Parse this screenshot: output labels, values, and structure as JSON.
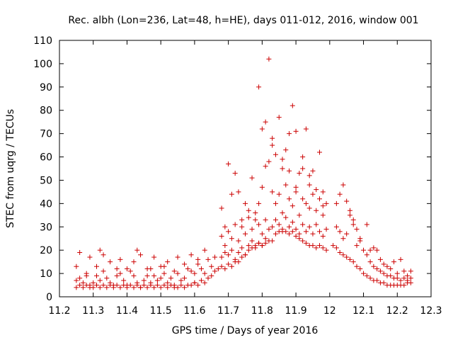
{
  "chart_data": {
    "type": "scatter",
    "title": "Rec. albh (Lon=236, Lat=48, h=HE), days 011-012, 2016, window 001",
    "xlabel": "GPS time / Days of year 2016",
    "ylabel": "STEC from uqrg / TECUs",
    "xlim": [
      11.2,
      12.3
    ],
    "ylim": [
      0,
      110
    ],
    "xticks": [
      11.2,
      11.3,
      11.4,
      11.5,
      11.6,
      11.7,
      11.8,
      11.9,
      12.0,
      12.1,
      12.2,
      12.3
    ],
    "xtick_labels": [
      "11.2",
      "11.3",
      "11.4",
      "11.5",
      "11.6",
      "11.7",
      "11.8",
      "11.9",
      "12",
      "12.1",
      "12.2",
      "12.3"
    ],
    "yticks": [
      0,
      10,
      20,
      30,
      40,
      50,
      60,
      70,
      80,
      90,
      100,
      110
    ],
    "ytick_labels": [
      "0",
      "10",
      "20",
      "30",
      "40",
      "50",
      "60",
      "70",
      "80",
      "90",
      "100",
      "110"
    ],
    "grid": false,
    "marker": "+",
    "color": "#cc0000",
    "series": [
      {
        "points": [
          [
            11.25,
            13
          ],
          [
            11.26,
            19
          ],
          [
            11.28,
            9
          ],
          [
            11.29,
            17
          ],
          [
            11.31,
            13
          ],
          [
            11.32,
            20
          ],
          [
            11.33,
            18
          ],
          [
            11.35,
            15
          ],
          [
            11.37,
            9
          ],
          [
            11.38,
            16
          ],
          [
            11.4,
            12
          ],
          [
            11.42,
            15
          ],
          [
            11.43,
            20
          ],
          [
            11.44,
            18
          ],
          [
            11.46,
            9
          ],
          [
            11.47,
            12
          ],
          [
            11.48,
            17
          ],
          [
            11.5,
            8
          ],
          [
            11.51,
            13
          ],
          [
            11.52,
            15
          ],
          [
            11.54,
            11
          ],
          [
            11.55,
            17
          ],
          [
            11.57,
            14
          ],
          [
            11.59,
            18
          ],
          [
            11.6,
            10
          ],
          [
            11.61,
            16
          ],
          [
            11.63,
            20
          ],
          [
            11.25,
            7
          ],
          [
            11.26,
            8
          ],
          [
            11.27,
            6
          ],
          [
            11.28,
            10
          ],
          [
            11.29,
            5
          ],
          [
            11.3,
            6
          ],
          [
            11.31,
            9
          ],
          [
            11.32,
            7
          ],
          [
            11.33,
            11
          ],
          [
            11.34,
            8
          ],
          [
            11.35,
            6
          ],
          [
            11.36,
            5
          ],
          [
            11.37,
            12
          ],
          [
            11.38,
            10
          ],
          [
            11.39,
            7
          ],
          [
            11.4,
            5
          ],
          [
            11.41,
            11
          ],
          [
            11.42,
            9
          ],
          [
            11.43,
            6
          ],
          [
            11.44,
            4
          ],
          [
            11.45,
            7
          ],
          [
            11.46,
            12
          ],
          [
            11.47,
            6
          ],
          [
            11.48,
            9
          ],
          [
            11.49,
            7
          ],
          [
            11.5,
            13
          ],
          [
            11.51,
            10
          ],
          [
            11.52,
            6
          ],
          [
            11.53,
            8
          ],
          [
            11.54,
            5
          ],
          [
            11.55,
            10
          ],
          [
            11.56,
            7
          ],
          [
            11.57,
            8
          ],
          [
            11.58,
            12
          ],
          [
            11.59,
            11
          ],
          [
            11.6,
            6
          ],
          [
            11.61,
            14
          ],
          [
            11.62,
            12
          ],
          [
            11.63,
            10
          ],
          [
            11.64,
            16
          ],
          [
            11.65,
            13
          ],
          [
            11.66,
            17
          ],
          [
            11.25,
            4
          ],
          [
            11.26,
            5
          ],
          [
            11.27,
            4
          ],
          [
            11.28,
            5
          ],
          [
            11.29,
            4
          ],
          [
            11.3,
            4
          ],
          [
            11.31,
            5
          ],
          [
            11.32,
            4
          ],
          [
            11.33,
            5
          ],
          [
            11.34,
            4
          ],
          [
            11.35,
            5
          ],
          [
            11.36,
            4
          ],
          [
            11.37,
            5
          ],
          [
            11.38,
            4
          ],
          [
            11.39,
            5
          ],
          [
            11.4,
            4
          ],
          [
            11.41,
            5
          ],
          [
            11.42,
            4
          ],
          [
            11.43,
            5
          ],
          [
            11.44,
            4
          ],
          [
            11.45,
            5
          ],
          [
            11.46,
            4
          ],
          [
            11.47,
            5
          ],
          [
            11.48,
            4
          ],
          [
            11.49,
            5
          ],
          [
            11.5,
            4
          ],
          [
            11.51,
            5
          ],
          [
            11.52,
            4
          ],
          [
            11.53,
            5
          ],
          [
            11.54,
            4
          ],
          [
            11.55,
            4
          ],
          [
            11.56,
            5
          ],
          [
            11.57,
            4
          ],
          [
            11.58,
            5
          ],
          [
            11.59,
            5
          ],
          [
            11.6,
            6
          ],
          [
            11.61,
            5
          ],
          [
            11.62,
            7
          ],
          [
            11.63,
            6
          ],
          [
            11.64,
            8
          ],
          [
            11.65,
            9
          ],
          [
            11.66,
            11
          ],
          [
            11.67,
            12
          ],
          [
            11.68,
            38
          ],
          [
            11.69,
            30
          ],
          [
            11.7,
            57
          ],
          [
            11.71,
            44
          ],
          [
            11.72,
            53
          ],
          [
            11.73,
            45
          ],
          [
            11.74,
            33
          ],
          [
            11.75,
            40
          ],
          [
            11.76,
            37
          ],
          [
            11.77,
            51
          ],
          [
            11.78,
            33
          ],
          [
            11.79,
            40
          ],
          [
            11.8,
            47
          ],
          [
            11.81,
            56
          ],
          [
            11.82,
            58
          ],
          [
            11.68,
            26
          ],
          [
            11.69,
            22
          ],
          [
            11.7,
            28
          ],
          [
            11.71,
            25
          ],
          [
            11.72,
            31
          ],
          [
            11.73,
            24
          ],
          [
            11.74,
            30
          ],
          [
            11.75,
            27
          ],
          [
            11.76,
            34
          ],
          [
            11.77,
            29
          ],
          [
            11.78,
            36
          ],
          [
            11.79,
            31
          ],
          [
            11.8,
            27
          ],
          [
            11.81,
            33
          ],
          [
            11.82,
            29
          ],
          [
            11.68,
            17
          ],
          [
            11.69,
            19
          ],
          [
            11.7,
            18
          ],
          [
            11.71,
            20
          ],
          [
            11.72,
            16
          ],
          [
            11.73,
            19
          ],
          [
            11.74,
            21
          ],
          [
            11.75,
            18
          ],
          [
            11.76,
            22
          ],
          [
            11.77,
            24
          ],
          [
            11.78,
            21
          ],
          [
            11.79,
            23
          ],
          [
            11.8,
            22
          ],
          [
            11.81,
            25
          ],
          [
            11.82,
            24
          ],
          [
            11.68,
            13
          ],
          [
            11.69,
            12
          ],
          [
            11.7,
            14
          ],
          [
            11.71,
            13
          ],
          [
            11.72,
            15
          ],
          [
            11.73,
            15
          ],
          [
            11.74,
            17
          ],
          [
            11.75,
            18
          ],
          [
            11.76,
            20
          ],
          [
            11.77,
            21
          ],
          [
            11.78,
            22
          ],
          [
            11.79,
            23
          ],
          [
            11.8,
            22
          ],
          [
            11.81,
            23
          ],
          [
            11.79,
            90
          ],
          [
            11.81,
            75
          ],
          [
            11.82,
            102
          ],
          [
            11.83,
            68
          ],
          [
            11.84,
            61
          ],
          [
            11.85,
            77
          ],
          [
            11.86,
            55
          ],
          [
            11.87,
            63
          ],
          [
            11.88,
            70
          ],
          [
            11.89,
            82
          ],
          [
            11.9,
            71
          ],
          [
            11.91,
            53
          ],
          [
            11.92,
            55
          ],
          [
            11.93,
            72
          ],
          [
            11.94,
            48
          ],
          [
            11.95,
            54
          ],
          [
            11.97,
            62
          ],
          [
            11.98,
            39
          ],
          [
            11.8,
            72
          ],
          [
            11.83,
            65
          ],
          [
            11.86,
            59
          ],
          [
            11.88,
            54
          ],
          [
            11.9,
            47
          ],
          [
            11.92,
            60
          ],
          [
            11.94,
            52
          ],
          [
            11.96,
            46
          ],
          [
            11.98,
            45
          ],
          [
            11.83,
            45
          ],
          [
            11.84,
            40
          ],
          [
            11.85,
            44
          ],
          [
            11.86,
            36
          ],
          [
            11.87,
            48
          ],
          [
            11.88,
            42
          ],
          [
            11.89,
            39
          ],
          [
            11.9,
            45
          ],
          [
            11.91,
            35
          ],
          [
            11.92,
            42
          ],
          [
            11.93,
            40
          ],
          [
            11.94,
            38
          ],
          [
            11.95,
            44
          ],
          [
            11.96,
            37
          ],
          [
            11.97,
            42
          ],
          [
            11.98,
            35
          ],
          [
            11.99,
            40
          ],
          [
            11.83,
            30
          ],
          [
            11.84,
            33
          ],
          [
            11.85,
            31
          ],
          [
            11.86,
            28
          ],
          [
            11.87,
            34
          ],
          [
            11.88,
            30
          ],
          [
            11.89,
            32
          ],
          [
            11.9,
            29
          ],
          [
            11.91,
            27
          ],
          [
            11.92,
            31
          ],
          [
            11.93,
            28
          ],
          [
            11.94,
            30
          ],
          [
            11.95,
            27
          ],
          [
            11.96,
            31
          ],
          [
            11.97,
            28
          ],
          [
            11.98,
            26
          ],
          [
            11.99,
            29
          ],
          [
            11.83,
            24
          ],
          [
            11.84,
            27
          ],
          [
            11.85,
            28
          ],
          [
            11.86,
            29
          ],
          [
            11.87,
            28
          ],
          [
            11.88,
            27
          ],
          [
            11.89,
            28
          ],
          [
            11.9,
            26
          ],
          [
            11.91,
            25
          ],
          [
            11.92,
            24
          ],
          [
            11.93,
            23
          ],
          [
            11.94,
            22
          ],
          [
            11.95,
            22
          ],
          [
            11.96,
            21
          ],
          [
            11.97,
            22
          ],
          [
            11.98,
            21
          ],
          [
            11.99,
            20
          ],
          [
            12.02,
            40
          ],
          [
            12.03,
            44
          ],
          [
            12.04,
            48
          ],
          [
            12.05,
            41
          ],
          [
            12.06,
            37
          ],
          [
            12.07,
            33
          ],
          [
            12.08,
            29
          ],
          [
            12.09,
            25
          ],
          [
            12.11,
            31
          ],
          [
            12.12,
            20
          ],
          [
            12.13,
            21
          ],
          [
            12.14,
            20
          ],
          [
            12.15,
            16
          ],
          [
            12.16,
            14
          ],
          [
            12.17,
            13
          ],
          [
            12.18,
            12
          ],
          [
            12.19,
            15
          ],
          [
            12.2,
            10
          ],
          [
            12.21,
            16
          ],
          [
            12.22,
            11
          ],
          [
            12.23,
            9
          ],
          [
            12.24,
            11
          ],
          [
            12.02,
            30
          ],
          [
            12.03,
            28
          ],
          [
            12.04,
            25
          ],
          [
            12.05,
            27
          ],
          [
            12.06,
            35
          ],
          [
            12.07,
            31
          ],
          [
            12.08,
            22
          ],
          [
            12.09,
            24
          ],
          [
            12.1,
            20
          ],
          [
            12.11,
            18
          ],
          [
            12.12,
            15
          ],
          [
            12.13,
            13
          ],
          [
            12.14,
            12
          ],
          [
            12.15,
            11
          ],
          [
            12.16,
            10
          ],
          [
            12.17,
            9
          ],
          [
            12.18,
            9
          ],
          [
            12.19,
            8
          ],
          [
            12.2,
            8
          ],
          [
            12.21,
            7
          ],
          [
            12.22,
            8
          ],
          [
            12.23,
            7
          ],
          [
            12.24,
            8
          ],
          [
            12.01,
            22
          ],
          [
            12.02,
            21
          ],
          [
            12.03,
            19
          ],
          [
            12.04,
            18
          ],
          [
            12.05,
            17
          ],
          [
            12.06,
            16
          ],
          [
            12.07,
            15
          ],
          [
            12.08,
            13
          ],
          [
            12.09,
            12
          ],
          [
            12.1,
            10
          ],
          [
            12.11,
            9
          ],
          [
            12.12,
            8
          ],
          [
            12.13,
            7
          ],
          [
            12.14,
            7
          ],
          [
            12.15,
            6
          ],
          [
            12.16,
            6
          ],
          [
            12.17,
            5
          ],
          [
            12.18,
            5
          ],
          [
            12.19,
            5
          ],
          [
            12.2,
            5
          ],
          [
            12.21,
            5
          ],
          [
            12.22,
            5
          ],
          [
            12.23,
            6
          ],
          [
            12.24,
            6
          ]
        ]
      }
    ]
  }
}
